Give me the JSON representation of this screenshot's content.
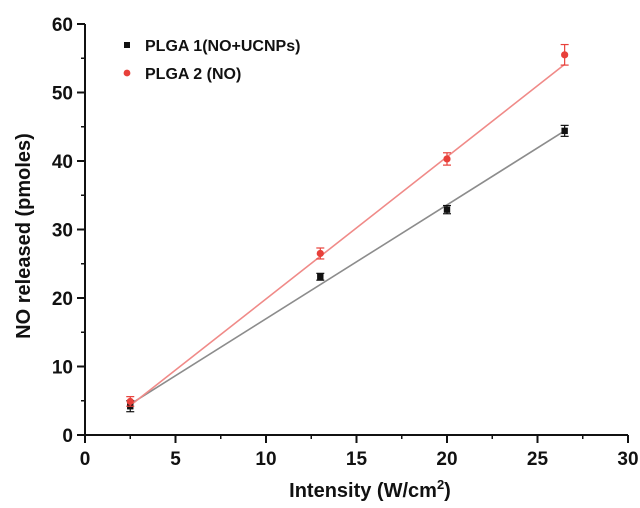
{
  "chart_data": {
    "type": "scatter",
    "xlabel": "Intensity (W/cm",
    "xlabel_sup": "2",
    "xlabel_end": ")",
    "ylabel": "NO released (pmoles)",
    "xlim": [
      0,
      30
    ],
    "ylim": [
      0,
      60
    ],
    "xticks": [
      0,
      5,
      10,
      15,
      20,
      25,
      30
    ],
    "yticks": [
      0,
      10,
      20,
      30,
      40,
      50,
      60
    ],
    "grid": false,
    "legend_position": "top-left",
    "series": [
      {
        "name": "PLGA 1(NO+UCNPs)",
        "marker": "square",
        "color": "#111111",
        "fit_color": "#8c8c8c",
        "x": [
          2.5,
          13,
          20,
          26.5
        ],
        "y": [
          4.2,
          23.1,
          32.9,
          44.4
        ],
        "err": [
          0.8,
          0.5,
          0.6,
          0.8
        ],
        "fit": [
          [
            2.5,
            4.5
          ],
          [
            26.5,
            44.4
          ]
        ]
      },
      {
        "name": "PLGA 2 (NO)",
        "marker": "circle",
        "color": "#e8403a",
        "fit_color": "#f08a88",
        "x": [
          2.5,
          13,
          20,
          26.5
        ],
        "y": [
          4.9,
          26.5,
          40.3,
          55.5
        ],
        "err": [
          0.7,
          0.8,
          0.9,
          1.5
        ],
        "fit": [
          [
            2.5,
            4.3
          ],
          [
            26.5,
            54.1
          ]
        ]
      }
    ]
  }
}
